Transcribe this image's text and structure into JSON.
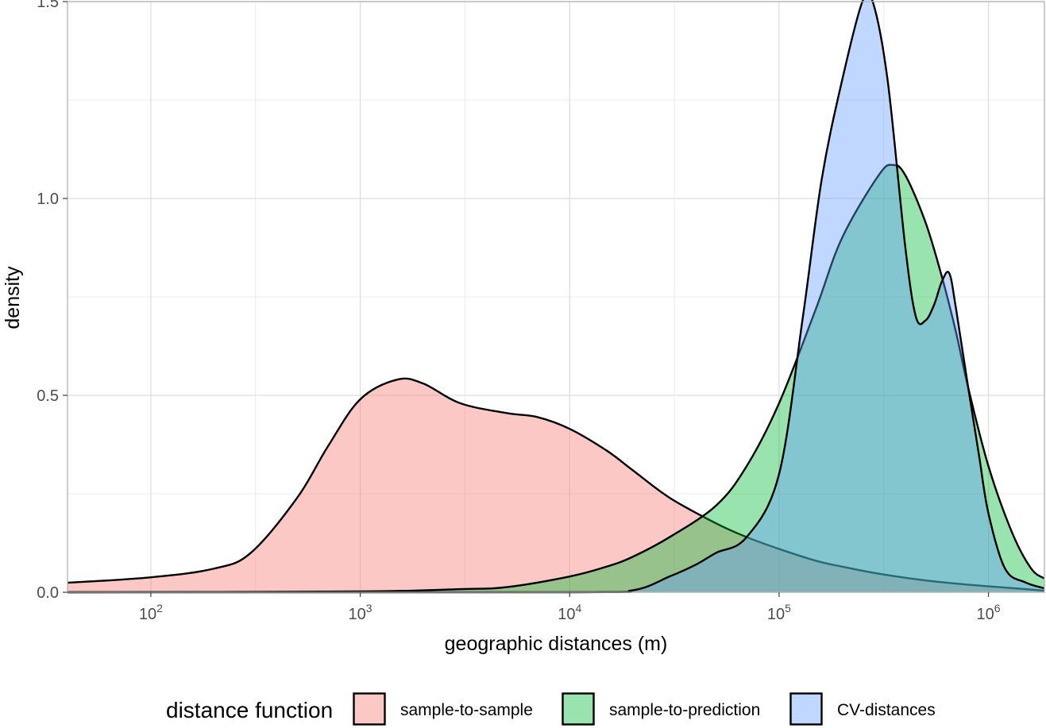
{
  "chart_data": {
    "type": "area",
    "xlabel": "geographic distances (m)",
    "ylabel": "density",
    "xscale": "log10",
    "xlim": [
      40,
      1850000
    ],
    "ylim": [
      0,
      1.5
    ],
    "x_ticks": [
      {
        "value": 100,
        "base": "10",
        "exp": "2"
      },
      {
        "value": 1000,
        "base": "10",
        "exp": "3"
      },
      {
        "value": 10000,
        "base": "10",
        "exp": "4"
      },
      {
        "value": 100000,
        "base": "10",
        "exp": "5"
      },
      {
        "value": 1000000,
        "base": "10",
        "exp": "6"
      }
    ],
    "y_ticks": [
      {
        "value": 0.0,
        "label": "0.0"
      },
      {
        "value": 0.5,
        "label": "0.5"
      },
      {
        "value": 1.0,
        "label": "1.0"
      },
      {
        "value": 1.5,
        "label": "1.5"
      }
    ],
    "grid": true,
    "legend": {
      "title": "distance function",
      "position": "bottom"
    },
    "series": [
      {
        "name": "sample-to-sample",
        "color": "#F8766D",
        "x": [
          40,
          100,
          200,
          300,
          500,
          700,
          1000,
          1500,
          2000,
          3000,
          5000,
          7000,
          10000,
          15000,
          20000,
          30000,
          50000,
          70000,
          100000,
          150000,
          200000,
          300000,
          500000,
          700000,
          1000000,
          1500000,
          1850000
        ],
        "y": [
          0.024,
          0.038,
          0.06,
          0.1,
          0.24,
          0.37,
          0.49,
          0.54,
          0.53,
          0.48,
          0.455,
          0.445,
          0.415,
          0.36,
          0.31,
          0.24,
          0.175,
          0.14,
          0.11,
          0.08,
          0.065,
          0.047,
          0.03,
          0.022,
          0.015,
          0.008,
          0.004
        ]
      },
      {
        "name": "sample-to-prediction",
        "color": "#00BA38",
        "x": [
          40,
          1000,
          3000,
          5000,
          10000,
          15000,
          20000,
          30000,
          50000,
          70000,
          100000,
          150000,
          200000,
          300000,
          350000,
          400000,
          500000,
          600000,
          700000,
          800000,
          1000000,
          1300000,
          1600000,
          1850000
        ],
        "y": [
          0.0,
          0.002,
          0.008,
          0.013,
          0.04,
          0.065,
          0.09,
          0.14,
          0.22,
          0.32,
          0.48,
          0.72,
          0.9,
          1.06,
          1.085,
          1.06,
          0.94,
          0.8,
          0.66,
          0.52,
          0.32,
          0.15,
          0.06,
          0.035
        ]
      },
      {
        "name": "CV-distances",
        "color": "#619CFF",
        "x": [
          40,
          10000,
          20000,
          30000,
          40000,
          50000,
          70000,
          100000,
          130000,
          160000,
          200000,
          250000,
          280000,
          330000,
          400000,
          450000,
          500000,
          550000,
          600000,
          650000,
          700000,
          800000,
          900000,
          1000000,
          1200000,
          1500000,
          1850000
        ],
        "y": [
          0.0,
          0.0,
          0.005,
          0.04,
          0.07,
          0.1,
          0.14,
          0.3,
          0.7,
          1.05,
          1.3,
          1.5,
          1.5,
          1.3,
          0.88,
          0.7,
          0.69,
          0.73,
          0.79,
          0.81,
          0.72,
          0.52,
          0.35,
          0.2,
          0.06,
          0.025,
          0.01
        ]
      }
    ]
  }
}
